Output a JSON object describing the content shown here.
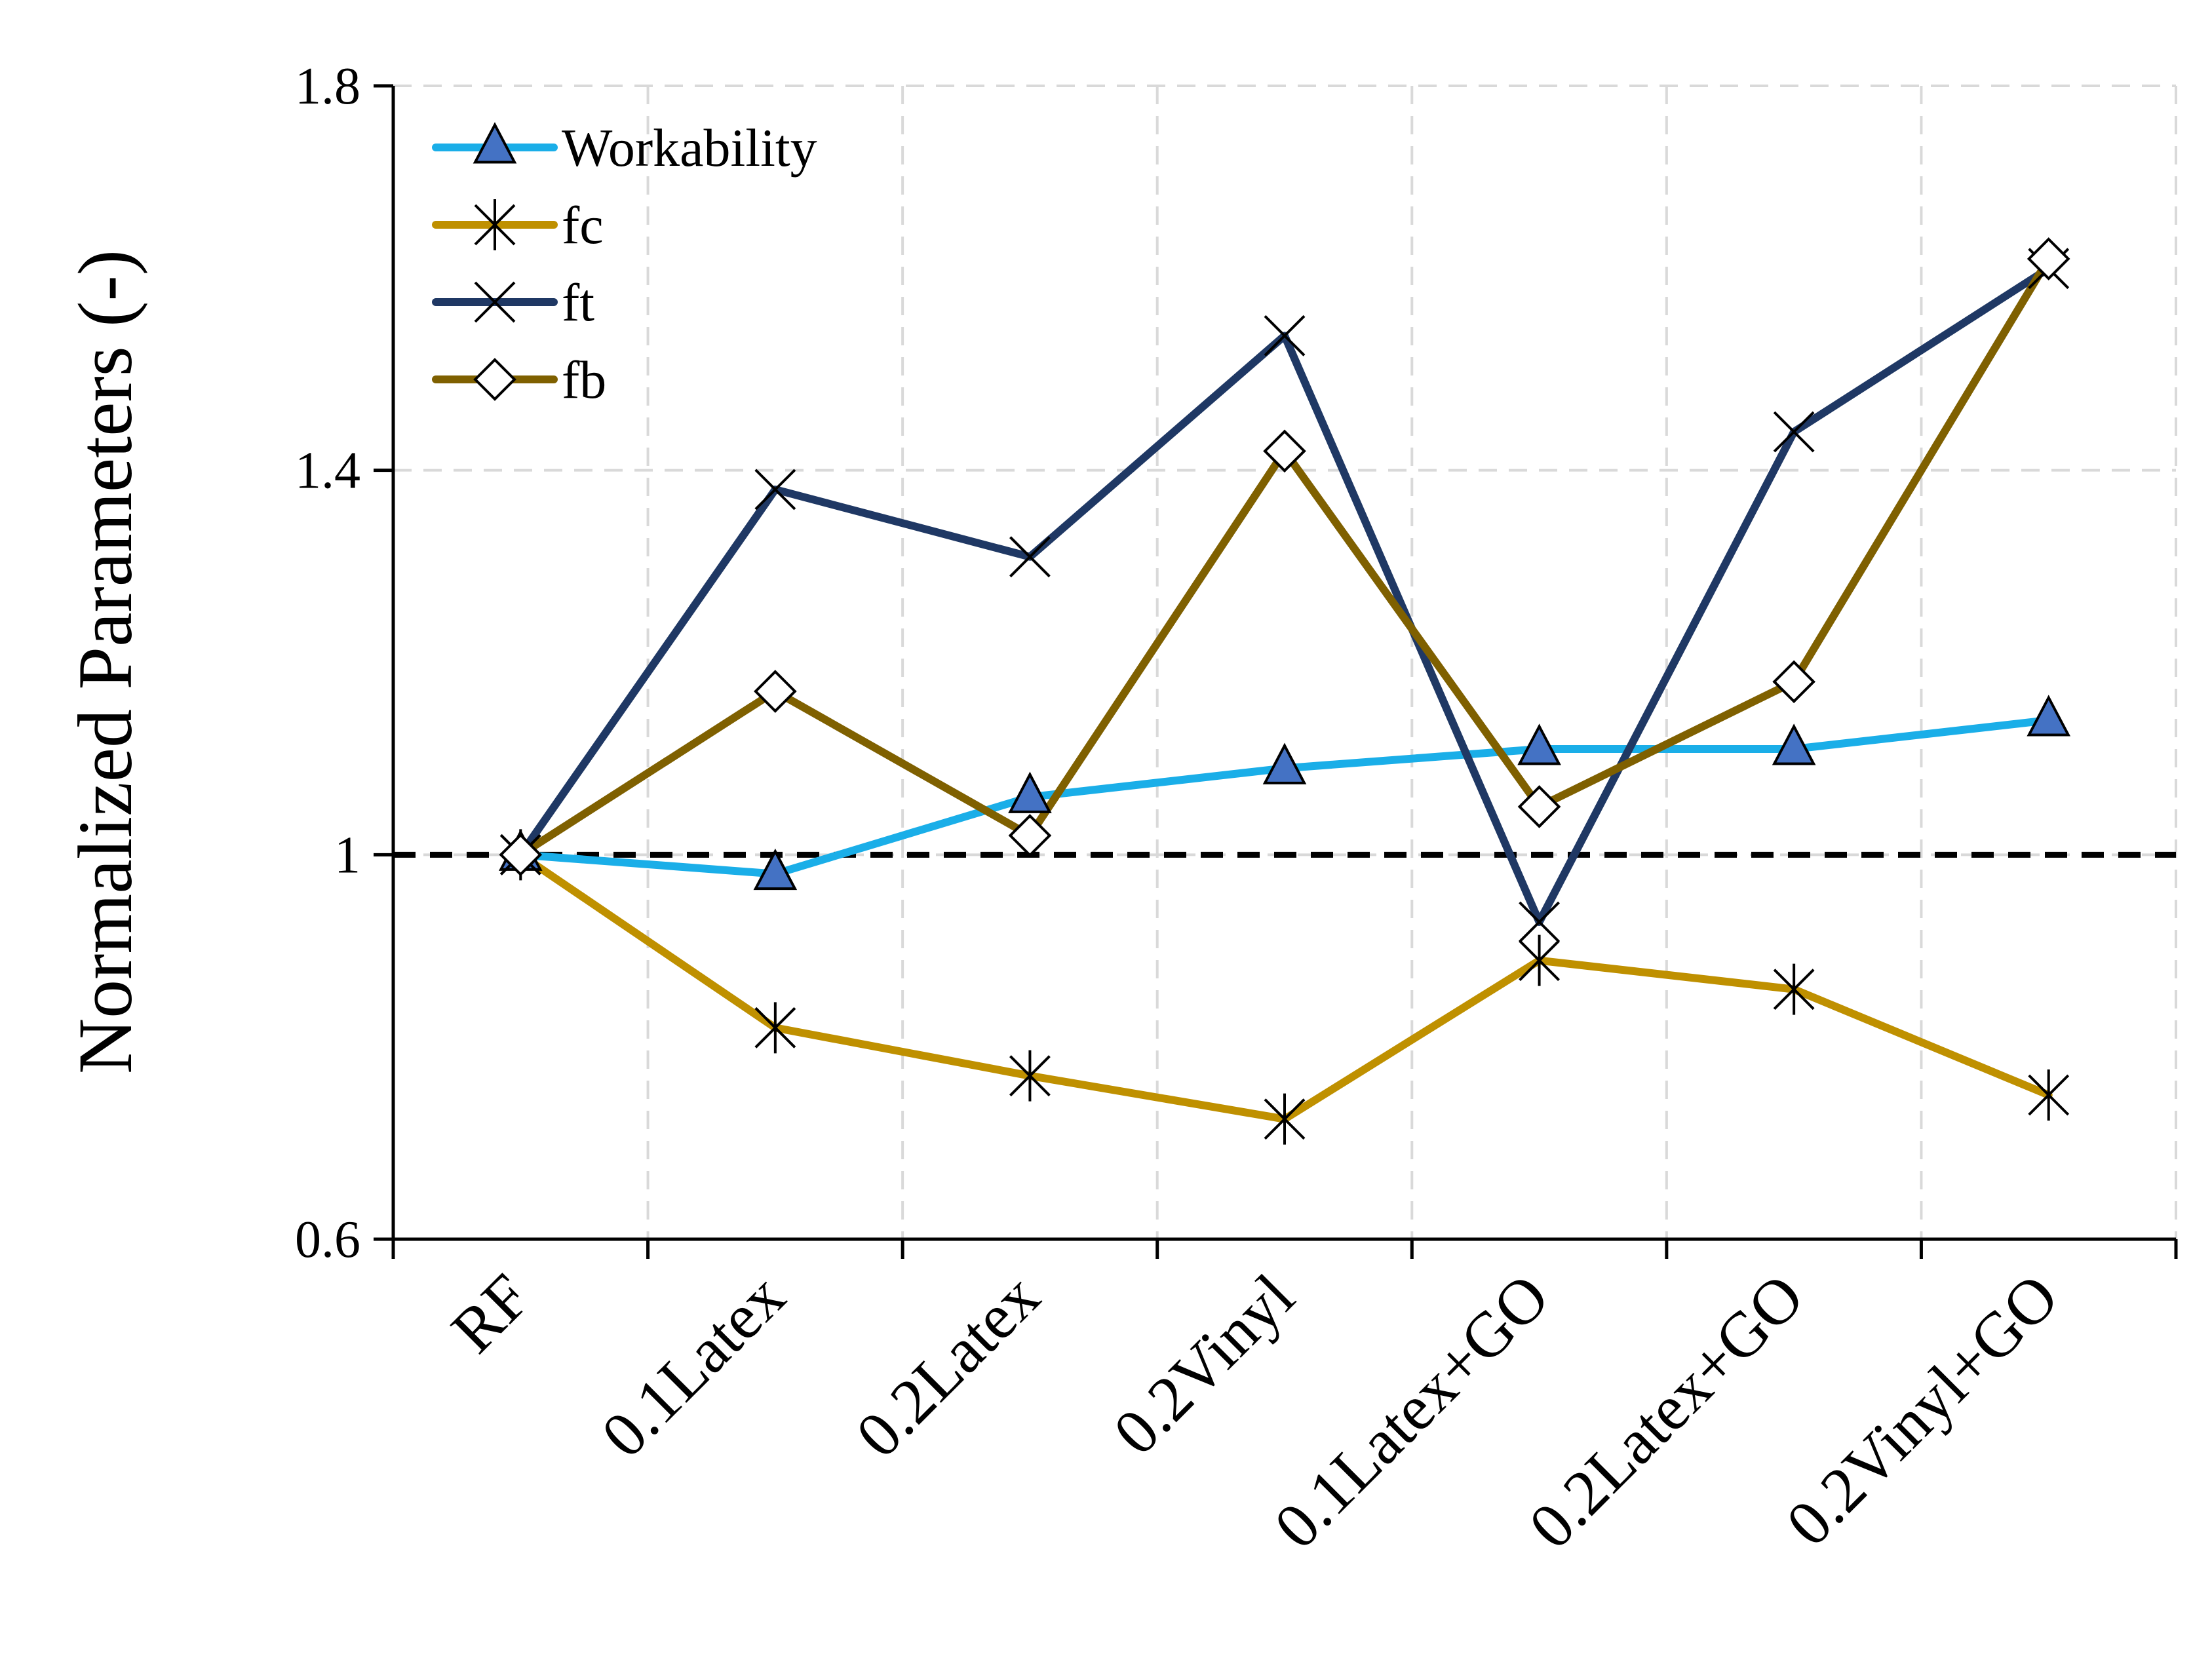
{
  "chart_data": {
    "type": "line",
    "title": "",
    "xlabel": "",
    "ylabel": "Normalized Parameters (-)",
    "categories": [
      "RF",
      "0.1Latex",
      "0.2Latex",
      "0.2Vinyl",
      "0.1Latex+GO",
      "0.2Latex+GO",
      "0.2Vinyl+GO"
    ],
    "ylim": [
      0.6,
      1.8
    ],
    "yticks": [
      0.6,
      1.0,
      1.4,
      1.8
    ],
    "ytick_labels": [
      "0.6",
      "1",
      "1.4",
      "1.8"
    ],
    "grid": true,
    "legend_position": "top-left",
    "reference_line": {
      "y": 1.0,
      "style": "dashed",
      "color": "#000000"
    },
    "series": [
      {
        "name": "Workability",
        "color": "#1AAEE8",
        "marker": "triangle",
        "marker_fill": "#4472C4",
        "values": [
          1.0,
          0.98,
          1.06,
          1.09,
          1.11,
          1.11,
          1.14
        ]
      },
      {
        "name": "fc",
        "color": "#BF9000",
        "marker": "asterisk",
        "marker_fill": "none",
        "values": [
          1.0,
          0.82,
          0.77,
          0.725,
          0.89,
          0.86,
          0.75
        ]
      },
      {
        "name": "ft",
        "color": "#1F3864",
        "marker": "x",
        "marker_fill": "none",
        "values": [
          1.0,
          1.38,
          1.31,
          1.54,
          0.93,
          1.44,
          1.61
        ]
      },
      {
        "name": "fb",
        "color": "#7F6000",
        "marker": "diamond",
        "marker_fill": "#ffffff",
        "values": [
          1.0,
          1.17,
          1.02,
          1.42,
          1.05,
          1.18,
          1.62
        ]
      }
    ]
  }
}
